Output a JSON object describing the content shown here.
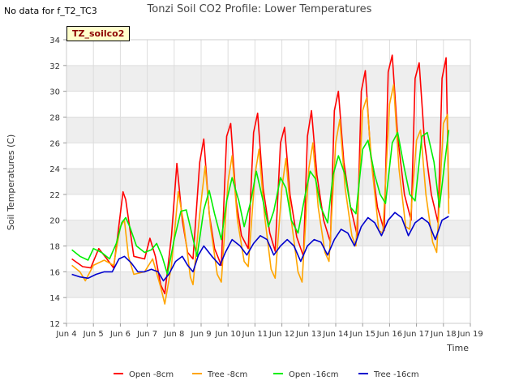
{
  "header": {
    "nodata": "No data for f_T2_TC3",
    "site_label": "TZ_soilco2"
  },
  "chart_data": {
    "type": "line",
    "title": "Tonzi Soil CO2 Profile: Lower Temperatures",
    "xlabel": "Time",
    "ylabel": "Soil Temperatures (C)",
    "xlim": [
      4,
      19
    ],
    "ylim": [
      12,
      34
    ],
    "x_ticks": [
      4,
      5,
      6,
      7,
      8,
      9,
      10,
      11,
      12,
      13,
      14,
      15,
      16,
      17,
      18,
      19
    ],
    "x_tick_labels": [
      "Jun 4",
      "Jun 5",
      "Jun 6",
      "Jun 7",
      "Jun 8",
      "Jun 9",
      "Jun 10",
      "Jun 11",
      "Jun 12",
      "Jun 13",
      "Jun 14",
      "Jun 15",
      "Jun 16",
      "Jun 17",
      "Jun 18",
      "Jun 19"
    ],
    "y_ticks": [
      12,
      14,
      16,
      18,
      20,
      22,
      24,
      26,
      28,
      30,
      32,
      34
    ],
    "legend_position": "bottom",
    "series": [
      {
        "name": "Open -8cm",
        "color": "#ff0000",
        "x": [
          4.2,
          4.6,
          4.9,
          5.2,
          5.5,
          5.75,
          5.9,
          6.1,
          6.2,
          6.5,
          6.9,
          7.1,
          7.3,
          7.5,
          7.65,
          7.9,
          8.1,
          8.3,
          8.5,
          8.7,
          8.95,
          9.1,
          9.3,
          9.5,
          9.75,
          9.95,
          10.1,
          10.3,
          10.5,
          10.75,
          10.95,
          11.1,
          11.3,
          11.55,
          11.75,
          11.95,
          12.1,
          12.3,
          12.55,
          12.8,
          12.95,
          13.1,
          13.3,
          13.55,
          13.8,
          13.95,
          14.1,
          14.3,
          14.55,
          14.8,
          14.95,
          15.1,
          15.3,
          15.55,
          15.8,
          15.95,
          16.1,
          16.3,
          16.55,
          16.8,
          16.95,
          17.1,
          17.3,
          17.55,
          17.8,
          17.95,
          18.1,
          18.2
        ],
        "y": [
          17.0,
          16.4,
          16.3,
          17.8,
          17.0,
          16.3,
          18.8,
          22.2,
          21.6,
          17.2,
          17.0,
          18.6,
          17.2,
          15.0,
          14.3,
          18.8,
          24.4,
          20.0,
          17.5,
          17.0,
          24.5,
          26.3,
          20.5,
          17.8,
          16.5,
          26.5,
          27.5,
          21.5,
          18.8,
          17.8,
          26.8,
          28.3,
          22.5,
          19.0,
          17.6,
          26.0,
          27.2,
          22.0,
          18.7,
          17.2,
          26.5,
          28.5,
          23.5,
          20.0,
          18.3,
          28.5,
          30.0,
          24.5,
          21.0,
          18.8,
          30.0,
          31.6,
          25.0,
          21.0,
          19.2,
          31.5,
          32.8,
          26.5,
          22.0,
          20.0,
          31.0,
          32.2,
          26.0,
          22.0,
          19.8,
          31.0,
          32.6,
          21.7
        ]
      },
      {
        "name": "Tree -8cm",
        "color": "#ffa500",
        "x": [
          4.2,
          4.5,
          4.7,
          5.0,
          5.4,
          5.75,
          6.0,
          6.15,
          6.3,
          6.5,
          6.9,
          7.2,
          7.5,
          7.65,
          7.9,
          8.15,
          8.35,
          8.6,
          8.7,
          8.95,
          9.15,
          9.35,
          9.6,
          9.75,
          10.0,
          10.15,
          10.35,
          10.6,
          10.75,
          11.0,
          11.15,
          11.35,
          11.6,
          11.75,
          12.0,
          12.15,
          12.35,
          12.6,
          12.75,
          13.0,
          13.15,
          13.35,
          13.6,
          13.75,
          14.0,
          14.15,
          14.35,
          14.6,
          14.75,
          15.0,
          15.15,
          15.35,
          15.6,
          15.75,
          16.0,
          16.15,
          16.35,
          16.6,
          16.75,
          17.0,
          17.15,
          17.35,
          17.6,
          17.75,
          18.0,
          18.15,
          18.2
        ],
        "y": [
          16.5,
          16.0,
          15.3,
          16.5,
          16.9,
          16.5,
          19.5,
          20.0,
          17.2,
          15.8,
          16.0,
          17.0,
          14.8,
          13.5,
          16.5,
          22.2,
          19.8,
          15.6,
          15.0,
          20.5,
          24.2,
          19.5,
          15.8,
          15.2,
          23.0,
          25.0,
          20.0,
          16.8,
          16.4,
          23.5,
          25.5,
          20.5,
          16.2,
          15.5,
          22.5,
          24.8,
          20.0,
          16.0,
          15.2,
          24.0,
          26.0,
          21.0,
          17.5,
          16.8,
          26.0,
          27.8,
          22.5,
          18.8,
          18.0,
          28.5,
          29.5,
          24.0,
          19.2,
          19.0,
          29.0,
          30.5,
          24.0,
          19.5,
          19.3,
          26.2,
          27.0,
          22.0,
          18.3,
          17.5,
          27.5,
          28.2,
          20.5
        ]
      },
      {
        "name": "Open -16cm",
        "color": "#00ee00",
        "x": [
          4.2,
          4.5,
          4.8,
          5.0,
          5.3,
          5.6,
          5.85,
          6.05,
          6.2,
          6.35,
          6.6,
          6.9,
          7.15,
          7.35,
          7.55,
          7.75,
          8.0,
          8.25,
          8.45,
          8.65,
          8.85,
          9.1,
          9.3,
          9.5,
          9.75,
          9.95,
          10.15,
          10.4,
          10.6,
          10.85,
          11.05,
          11.3,
          11.5,
          11.7,
          11.95,
          12.15,
          12.35,
          12.6,
          12.85,
          13.05,
          13.25,
          13.45,
          13.7,
          13.9,
          14.1,
          14.35,
          14.55,
          14.75,
          15.0,
          15.2,
          15.45,
          15.65,
          15.85,
          16.1,
          16.3,
          16.55,
          16.75,
          16.95,
          17.2,
          17.4,
          17.65,
          17.85,
          18.05,
          18.2
        ],
        "y": [
          17.7,
          17.2,
          16.9,
          17.8,
          17.5,
          17.0,
          18.2,
          19.8,
          20.2,
          19.5,
          18.0,
          17.5,
          17.7,
          18.2,
          17.2,
          15.8,
          18.5,
          20.7,
          20.8,
          19.0,
          17.2,
          20.8,
          22.3,
          20.5,
          18.5,
          21.5,
          23.3,
          21.5,
          19.5,
          21.5,
          23.8,
          21.5,
          19.5,
          20.7,
          23.3,
          22.5,
          20.0,
          19.0,
          21.8,
          23.8,
          23.2,
          21.0,
          19.8,
          23.5,
          25.0,
          23.5,
          21.0,
          20.5,
          25.5,
          26.2,
          23.5,
          22.0,
          21.3,
          26.0,
          26.8,
          24.0,
          22.0,
          21.5,
          26.5,
          26.8,
          24.5,
          21.0,
          24.5,
          27.0
        ]
      },
      {
        "name": "Tree -16cm",
        "color": "#0000cd",
        "x": [
          4.2,
          4.5,
          4.8,
          5.1,
          5.4,
          5.7,
          5.95,
          6.15,
          6.4,
          6.65,
          6.9,
          7.15,
          7.4,
          7.6,
          7.8,
          8.05,
          8.3,
          8.5,
          8.7,
          8.9,
          9.1,
          9.4,
          9.7,
          9.9,
          10.15,
          10.45,
          10.7,
          10.95,
          11.2,
          11.45,
          11.7,
          11.95,
          12.2,
          12.45,
          12.7,
          12.95,
          13.2,
          13.45,
          13.7,
          13.95,
          14.2,
          14.45,
          14.7,
          14.95,
          15.2,
          15.45,
          15.7,
          15.95,
          16.2,
          16.45,
          16.7,
          16.95,
          17.2,
          17.45,
          17.7,
          17.95,
          18.2
        ],
        "y": [
          15.8,
          15.6,
          15.5,
          15.8,
          16.0,
          16.0,
          17.0,
          17.2,
          16.7,
          16.0,
          16.0,
          16.2,
          16.0,
          15.3,
          15.8,
          16.8,
          17.2,
          16.5,
          16.0,
          17.3,
          18.0,
          17.2,
          16.5,
          17.5,
          18.5,
          18.0,
          17.3,
          18.2,
          18.8,
          18.5,
          17.3,
          18.0,
          18.5,
          18.0,
          16.8,
          18.0,
          18.5,
          18.3,
          17.3,
          18.5,
          19.3,
          19.0,
          18.0,
          19.5,
          20.2,
          19.8,
          18.8,
          20.0,
          20.6,
          20.2,
          18.8,
          19.8,
          20.2,
          19.8,
          18.5,
          20.0,
          20.3
        ]
      }
    ]
  }
}
